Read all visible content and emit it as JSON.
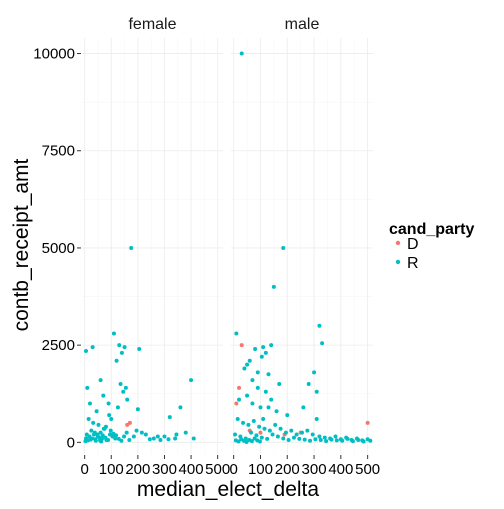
{
  "chart_data": {
    "type": "scatter",
    "facet_by": "contbr_gender",
    "facets": [
      "female",
      "male"
    ],
    "xlabel": "median_elect_delta",
    "ylabel": "contb_receipt_amt",
    "xlim": [
      -10,
      520
    ],
    "ylim": [
      -300,
      10400
    ],
    "x_ticks": [
      0,
      100,
      200,
      300,
      400,
      500
    ],
    "x_tick_labels": [
      "0",
      "100",
      "200",
      "300",
      "400",
      "500"
    ],
    "y_ticks": [
      0,
      2500,
      5000,
      7500,
      10000
    ],
    "y_tick_labels": [
      "0",
      "2500",
      "5000",
      "7500",
      "10000"
    ],
    "grid": true,
    "legend": {
      "title": "cand_party",
      "position": "right",
      "entries": [
        {
          "label": "D",
          "color": "#F8766D"
        },
        {
          "label": "R",
          "color": "#00BFC4"
        }
      ]
    },
    "series": [
      {
        "name": "D",
        "color": "#F8766D",
        "points": {
          "female": [
            [
              170,
              500
            ],
            [
              160,
              450
            ]
          ],
          "male": [
            [
              30,
              2500
            ],
            [
              20,
              1400
            ],
            [
              10,
              1000
            ],
            [
              100,
              250
            ],
            [
              250,
              250
            ],
            [
              500,
              500
            ],
            [
              190,
              200
            ],
            [
              60,
              300
            ]
          ]
        }
      },
      {
        "name": "R",
        "color": "#00BFC4",
        "points": {
          "female": [
            [
              5,
              2350
            ],
            [
              30,
              2450
            ],
            [
              110,
              2800
            ],
            [
              175,
              5000
            ],
            [
              205,
              2400
            ],
            [
              400,
              1600
            ],
            [
              360,
              900
            ],
            [
              200,
              850
            ],
            [
              320,
              650
            ],
            [
              90,
              1000
            ],
            [
              60,
              1600
            ],
            [
              70,
              1200
            ],
            [
              130,
              2500
            ],
            [
              140,
              2300
            ],
            [
              150,
              2450
            ],
            [
              120,
              2100
            ],
            [
              135,
              1500
            ],
            [
              145,
              1300
            ],
            [
              155,
              1400
            ],
            [
              125,
              900
            ],
            [
              160,
              1100
            ],
            [
              45,
              800
            ],
            [
              20,
              1000
            ],
            [
              10,
              1400
            ],
            [
              15,
              600
            ],
            [
              80,
              400
            ],
            [
              100,
              600
            ],
            [
              25,
              300
            ],
            [
              35,
              200
            ],
            [
              50,
              150
            ],
            [
              60,
              250
            ],
            [
              75,
              350
            ],
            [
              5,
              100
            ],
            [
              12,
              50
            ],
            [
              40,
              80
            ],
            [
              55,
              120
            ],
            [
              65,
              90
            ],
            [
              95,
              200
            ],
            [
              105,
              150
            ],
            [
              115,
              100
            ],
            [
              185,
              150
            ],
            [
              230,
              200
            ],
            [
              260,
              100
            ],
            [
              300,
              150
            ],
            [
              340,
              100
            ],
            [
              380,
              250
            ],
            [
              410,
              100
            ],
            [
              8,
              200
            ],
            [
              18,
              150
            ],
            [
              28,
              100
            ],
            [
              38,
              250
            ],
            [
              48,
              200
            ],
            [
              58,
              50
            ],
            [
              68,
              180
            ],
            [
              78,
              120
            ],
            [
              88,
              60
            ],
            [
              98,
              300
            ],
            [
              108,
              220
            ],
            [
              118,
              180
            ],
            [
              128,
              90
            ],
            [
              138,
              40
            ],
            [
              148,
              150
            ],
            [
              158,
              250
            ],
            [
              168,
              60
            ],
            [
              195,
              300
            ],
            [
              215,
              250
            ],
            [
              245,
              80
            ],
            [
              275,
              150
            ],
            [
              285,
              60
            ],
            [
              315,
              80
            ],
            [
              345,
              200
            ],
            [
              3,
              30
            ],
            [
              22,
              70
            ],
            [
              42,
              40
            ],
            [
              62,
              20
            ],
            [
              82,
              60
            ],
            [
              32,
              500
            ],
            [
              52,
              450
            ],
            [
              72,
              350
            ],
            [
              92,
              700
            ]
          ],
          "male": [
            [
              30,
              10000
            ],
            [
              185,
              5000
            ],
            [
              150,
              4000
            ],
            [
              10,
              2800
            ],
            [
              320,
              3000
            ],
            [
              330,
              2550
            ],
            [
              110,
              2450
            ],
            [
              80,
              2400
            ],
            [
              140,
              2500
            ],
            [
              120,
              2300
            ],
            [
              60,
              2100
            ],
            [
              40,
              1900
            ],
            [
              90,
              1800
            ],
            [
              130,
              1750
            ],
            [
              170,
              1500
            ],
            [
              280,
              1500
            ],
            [
              310,
              1300
            ],
            [
              300,
              1800
            ],
            [
              20,
              1100
            ],
            [
              50,
              1200
            ],
            [
              70,
              1000
            ],
            [
              100,
              900
            ],
            [
              160,
              800
            ],
            [
              200,
              700
            ],
            [
              260,
              900
            ],
            [
              310,
              600
            ],
            [
              15,
              600
            ],
            [
              35,
              500
            ],
            [
              55,
              450
            ],
            [
              75,
              550
            ],
            [
              95,
              400
            ],
            [
              115,
              350
            ],
            [
              135,
              300
            ],
            [
              155,
              450
            ],
            [
              175,
              350
            ],
            [
              195,
              250
            ],
            [
              215,
              300
            ],
            [
              235,
              200
            ],
            [
              255,
              250
            ],
            [
              275,
              300
            ],
            [
              295,
              200
            ],
            [
              320,
              150
            ],
            [
              340,
              120
            ],
            [
              360,
              100
            ],
            [
              380,
              150
            ],
            [
              400,
              80
            ],
            [
              420,
              120
            ],
            [
              440,
              60
            ],
            [
              460,
              100
            ],
            [
              480,
              50
            ],
            [
              500,
              80
            ],
            [
              510,
              40
            ],
            [
              5,
              200
            ],
            [
              25,
              150
            ],
            [
              45,
              100
            ],
            [
              65,
              250
            ],
            [
              85,
              180
            ],
            [
              105,
              120
            ],
            [
              125,
              90
            ],
            [
              145,
              200
            ],
            [
              165,
              150
            ],
            [
              185,
              100
            ],
            [
              205,
              60
            ],
            [
              225,
              120
            ],
            [
              245,
              90
            ],
            [
              265,
              70
            ],
            [
              285,
              40
            ],
            [
              305,
              80
            ],
            [
              325,
              60
            ],
            [
              345,
              30
            ],
            [
              365,
              70
            ],
            [
              385,
              50
            ],
            [
              405,
              40
            ],
            [
              425,
              90
            ],
            [
              445,
              30
            ],
            [
              465,
              60
            ],
            [
              485,
              20
            ],
            [
              8,
              50
            ],
            [
              18,
              20
            ],
            [
              28,
              80
            ],
            [
              38,
              40
            ],
            [
              48,
              10
            ],
            [
              58,
              60
            ],
            [
              68,
              30
            ],
            [
              78,
              100
            ],
            [
              88,
              50
            ],
            [
              98,
              20
            ],
            [
              110,
              600
            ],
            [
              120,
              1300
            ],
            [
              130,
              900
            ],
            [
              140,
              1100
            ],
            [
              90,
              1400
            ],
            [
              70,
              1600
            ],
            [
              50,
              2000
            ],
            [
              105,
              2200
            ]
          ]
        }
      }
    ]
  }
}
